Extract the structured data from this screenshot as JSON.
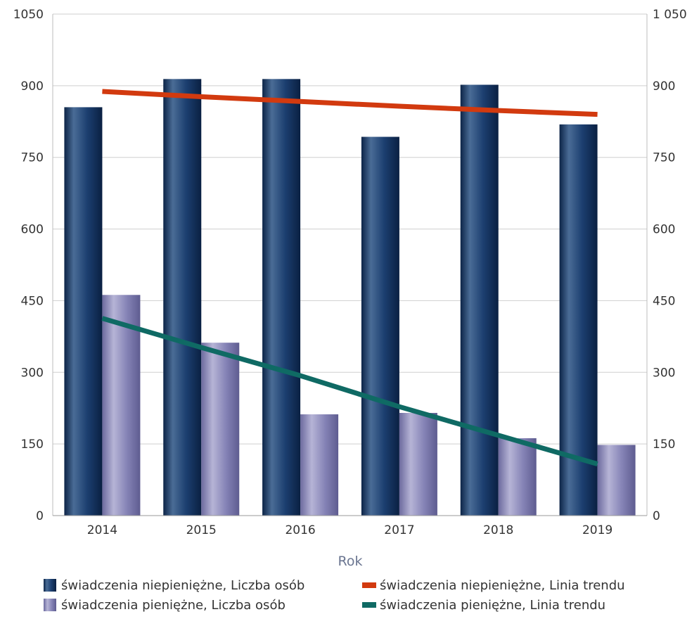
{
  "chart_data": {
    "type": "bar",
    "categories": [
      "2014",
      "2015",
      "2016",
      "2017",
      "2018",
      "2019"
    ],
    "xlabel": "Rok",
    "ylabel": "",
    "ylim": [
      0,
      1050
    ],
    "yticks_left": [
      "0",
      "150",
      "300",
      "450",
      "600",
      "750",
      "900",
      "1050"
    ],
    "yticks_right": [
      "0",
      "150",
      "300",
      "450",
      "600",
      "750",
      "900",
      "1 050"
    ],
    "ytick_values": [
      0,
      150,
      300,
      450,
      600,
      750,
      900,
      1050
    ],
    "grid": "horizontal",
    "legend_position": "bottom",
    "series": [
      {
        "name": "świadczenia niepieniężne, Liczba osób",
        "kind": "bar",
        "color": "#1f3a68",
        "values": [
          855,
          914,
          914,
          793,
          902,
          819
        ]
      },
      {
        "name": "świadczenia pieniężne, Liczba osób",
        "kind": "bar",
        "color": "#8a87b8",
        "values": [
          462,
          362,
          212,
          215,
          162,
          148
        ]
      },
      {
        "name": "świadczenia niepieniężne, Linia trendu",
        "kind": "line",
        "color": "#d23a0f",
        "values": [
          888,
          877,
          867,
          857,
          848,
          840
        ]
      },
      {
        "name": "świadczenia pieniężne, Linia trendu",
        "kind": "line",
        "color": "#0f6a64",
        "values": [
          413,
          352,
          293,
          228,
          168,
          108
        ]
      }
    ]
  }
}
